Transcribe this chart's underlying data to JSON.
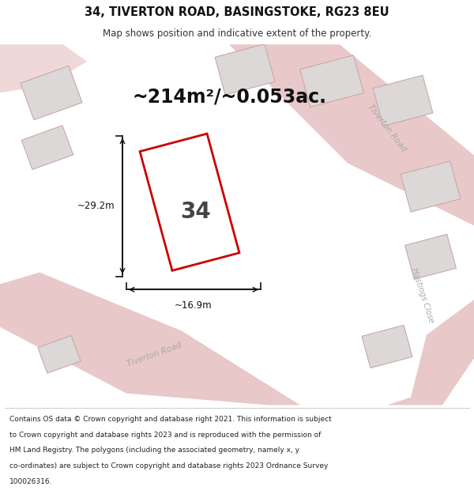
{
  "title_line1": "34, TIVERTON ROAD, BASINGSTOKE, RG23 8EU",
  "title_line2": "Map shows position and indicative extent of the property.",
  "area_text": "~214m²/~0.053ac.",
  "property_number": "34",
  "dim_height": "~29.2m",
  "dim_width": "~16.9m",
  "footer_lines": [
    "Contains OS data © Crown copyright and database right 2021. This information is subject",
    "to Crown copyright and database rights 2023 and is reproduced with the permission of",
    "HM Land Registry. The polygons (including the associated geometry, namely x, y",
    "co-ordinates) are subject to Crown copyright and database rights 2023 Ordnance Survey",
    "100026316."
  ],
  "map_bg": "#f2f0f0",
  "road_color": "#e8c8c8",
  "building_fill": "#ddd8d8",
  "building_outline": "#c8a8a8",
  "property_outline": "#cc0000",
  "property_fill": "#ffffff",
  "road_label_color": "#aaaaaa",
  "dim_line_color": "#111111",
  "text_color": "#111111"
}
